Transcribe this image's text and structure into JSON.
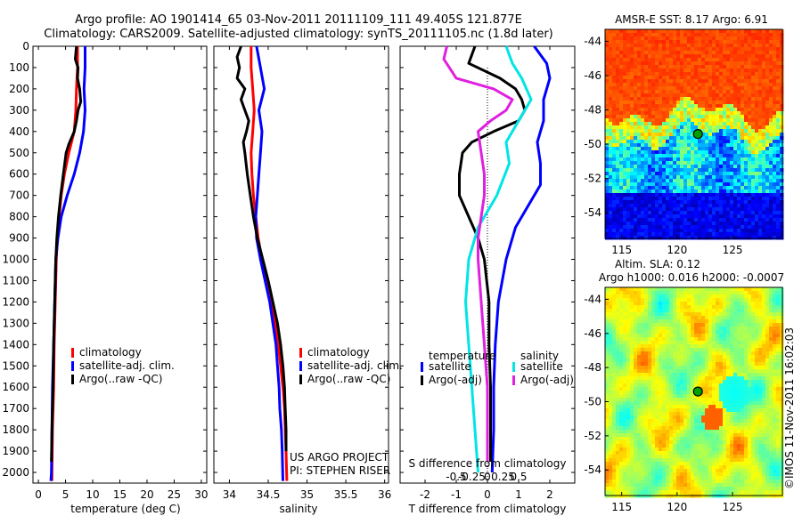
{
  "title_line1": "Argo profile: AO 1901414_65 03-Nov-2011 20111109_111 49.405S 121.877E",
  "title_line2": "Climatology: CARS2009. Satellite-adjusted climatology: synTS_20111105.nc (1.8d later)",
  "colors": {
    "climatology": "#ff0000",
    "satellite": "#0000ff",
    "argo": "#000000",
    "sat_salinity": "#00e5e5",
    "argo_salinity": "#e020e0"
  },
  "chart_data": [
    {
      "type": "line",
      "id": "temperature",
      "xlabel": "temperature (deg C)",
      "xlim": [
        -1,
        31
      ],
      "ylim": [
        2050,
        0
      ],
      "xticks": [
        0,
        5,
        10,
        15,
        20,
        25,
        30
      ],
      "xtick_labels": [
        "0",
        "5",
        "10",
        "15",
        "20",
        "25",
        "30"
      ],
      "yticks": [
        0,
        100,
        200,
        300,
        400,
        500,
        600,
        700,
        800,
        900,
        1000,
        1100,
        1200,
        1300,
        1400,
        1500,
        1600,
        1700,
        1800,
        1900,
        2000
      ],
      "ytick_labels": [
        "0",
        "100",
        "200",
        "300",
        "400",
        "500",
        "600",
        "700",
        "800",
        "900",
        "1000",
        "1100",
        "1200",
        "1300",
        "1400",
        "1500",
        "1600",
        "1700",
        "1800",
        "1900",
        "2000"
      ],
      "legend": [
        "climatology",
        "satellite-adj. clim.",
        "Argo(..raw -QC)"
      ],
      "series": [
        {
          "color_key": "climatology",
          "points": [
            [
              7.2,
              0
            ],
            [
              7.2,
              100
            ],
            [
              7.0,
              200
            ],
            [
              6.9,
              300
            ],
            [
              6.6,
              400
            ],
            [
              5.6,
              500
            ],
            [
              4.8,
              600
            ],
            [
              4.2,
              700
            ],
            [
              3.8,
              800
            ],
            [
              3.5,
              900
            ],
            [
              3.3,
              1000
            ],
            [
              3.1,
              1200
            ],
            [
              2.9,
              1400
            ],
            [
              2.8,
              1600
            ],
            [
              2.6,
              1800
            ],
            [
              2.5,
              2000
            ],
            [
              2.5,
              2040
            ]
          ]
        },
        {
          "color_key": "satellite",
          "points": [
            [
              8.6,
              0
            ],
            [
              8.6,
              100
            ],
            [
              8.4,
              200
            ],
            [
              8.6,
              300
            ],
            [
              8.3,
              400
            ],
            [
              7.6,
              500
            ],
            [
              6.6,
              600
            ],
            [
              5.3,
              700
            ],
            [
              4.2,
              800
            ],
            [
              3.6,
              900
            ],
            [
              3.2,
              1000
            ],
            [
              3.0,
              1200
            ],
            [
              2.8,
              1400
            ],
            [
              2.6,
              1600
            ],
            [
              2.5,
              1800
            ],
            [
              2.4,
              2000
            ],
            [
              2.3,
              2040
            ]
          ]
        },
        {
          "color_key": "argo",
          "points": [
            [
              7.0,
              0
            ],
            [
              6.8,
              60
            ],
            [
              7.3,
              100
            ],
            [
              7.2,
              150
            ],
            [
              7.6,
              200
            ],
            [
              7.8,
              260
            ],
            [
              7.3,
              300
            ],
            [
              7.0,
              350
            ],
            [
              6.6,
              400
            ],
            [
              5.6,
              460
            ],
            [
              5.1,
              500
            ],
            [
              4.6,
              600
            ],
            [
              4.1,
              700
            ],
            [
              3.7,
              800
            ],
            [
              3.4,
              900
            ],
            [
              3.2,
              1000
            ],
            [
              3.0,
              1200
            ],
            [
              2.8,
              1400
            ],
            [
              2.7,
              1600
            ],
            [
              2.5,
              1800
            ],
            [
              2.4,
              1950
            ]
          ]
        }
      ]
    },
    {
      "type": "line",
      "id": "salinity",
      "xlabel": "salinity",
      "xlim": [
        33.8,
        36.05
      ],
      "ylim": [
        2050,
        0
      ],
      "xticks": [
        34,
        34.5,
        35,
        35.5,
        36
      ],
      "xtick_labels": [
        "34",
        "34.5",
        "35",
        "35.5",
        "36"
      ],
      "legend": [
        "climatology",
        "satellite-adj. clim.",
        "Argo(..raw -QC)"
      ],
      "annotation": [
        "US ARGO PROJECT",
        "PI: STEPHEN RISER"
      ],
      "series": [
        {
          "color_key": "climatology",
          "points": [
            [
              34.28,
              0
            ],
            [
              34.28,
              100
            ],
            [
              34.3,
              200
            ],
            [
              34.32,
              300
            ],
            [
              34.3,
              400
            ],
            [
              34.28,
              500
            ],
            [
              34.29,
              600
            ],
            [
              34.31,
              700
            ],
            [
              34.34,
              800
            ],
            [
              34.37,
              900
            ],
            [
              34.42,
              1000
            ],
            [
              34.48,
              1100
            ],
            [
              34.54,
              1200
            ],
            [
              34.59,
              1300
            ],
            [
              34.63,
              1400
            ],
            [
              34.66,
              1500
            ],
            [
              34.69,
              1600
            ],
            [
              34.71,
              1700
            ],
            [
              34.72,
              1800
            ],
            [
              34.73,
              1900
            ],
            [
              34.74,
              2040
            ]
          ]
        },
        {
          "color_key": "satellite",
          "points": [
            [
              34.35,
              0
            ],
            [
              34.4,
              100
            ],
            [
              34.45,
              200
            ],
            [
              34.38,
              300
            ],
            [
              34.42,
              400
            ],
            [
              34.4,
              500
            ],
            [
              34.38,
              600
            ],
            [
              34.36,
              700
            ],
            [
              34.34,
              800
            ],
            [
              34.35,
              900
            ],
            [
              34.4,
              1000
            ],
            [
              34.46,
              1100
            ],
            [
              34.52,
              1200
            ],
            [
              34.56,
              1300
            ],
            [
              34.6,
              1400
            ],
            [
              34.62,
              1500
            ],
            [
              34.64,
              1600
            ],
            [
              34.65,
              1700
            ],
            [
              34.67,
              1800
            ],
            [
              34.68,
              1900
            ],
            [
              34.69,
              2040
            ]
          ]
        },
        {
          "color_key": "argo",
          "points": [
            [
              34.15,
              0
            ],
            [
              34.1,
              50
            ],
            [
              34.13,
              100
            ],
            [
              34.1,
              150
            ],
            [
              34.2,
              200
            ],
            [
              34.15,
              250
            ],
            [
              34.2,
              300
            ],
            [
              34.25,
              350
            ],
            [
              34.22,
              400
            ],
            [
              34.18,
              450
            ],
            [
              34.2,
              500
            ],
            [
              34.23,
              600
            ],
            [
              34.27,
              700
            ],
            [
              34.31,
              800
            ],
            [
              34.36,
              900
            ],
            [
              34.43,
              1000
            ],
            [
              34.5,
              1100
            ],
            [
              34.56,
              1200
            ],
            [
              34.62,
              1300
            ],
            [
              34.66,
              1400
            ],
            [
              34.69,
              1500
            ],
            [
              34.71,
              1600
            ],
            [
              34.72,
              1700
            ],
            [
              34.73,
              1800
            ],
            [
              34.73,
              1900
            ]
          ]
        }
      ]
    },
    {
      "type": "line",
      "id": "difference",
      "xlabel": "T difference from climatology",
      "xlabel_top": "S difference from climatology",
      "xlim": [
        -2.8,
        2.8
      ],
      "ylim": [
        2050,
        0
      ],
      "xticks": [
        -2,
        -1,
        0,
        1,
        2
      ],
      "xtick_labels": [
        "-2",
        "-1",
        "0",
        "1",
        "2"
      ],
      "top_ticks": [
        -0.5,
        -0.25,
        0,
        0.25,
        0.5
      ],
      "top_tick_labels": [
        "-0.5",
        "-0.25",
        "0",
        "0.25",
        "0.5"
      ],
      "legend_temperature": {
        "title": "temperature",
        "items": [
          "satellite",
          "Argo(-adj)"
        ]
      },
      "legend_salinity": {
        "title": "salinity",
        "items": [
          "satellite",
          "Argo(-adj)"
        ]
      },
      "series": [
        {
          "color_key": "satellite",
          "points": [
            [
              1.5,
              0
            ],
            [
              1.9,
              80
            ],
            [
              2.0,
              150
            ],
            [
              1.8,
              250
            ],
            [
              1.8,
              350
            ],
            [
              1.6,
              450
            ],
            [
              1.7,
              550
            ],
            [
              1.7,
              650
            ],
            [
              1.3,
              750
            ],
            [
              0.9,
              850
            ],
            [
              0.6,
              1000
            ],
            [
              0.35,
              1200
            ],
            [
              0.25,
              1400
            ],
            [
              0.2,
              1600
            ],
            [
              0.2,
              1800
            ],
            [
              0.15,
              2000
            ]
          ]
        },
        {
          "color_key": "argo",
          "points": [
            [
              -0.4,
              0
            ],
            [
              -0.6,
              80
            ],
            [
              0.4,
              150
            ],
            [
              0.9,
              200
            ],
            [
              1.1,
              250
            ],
            [
              1.2,
              300
            ],
            [
              1.0,
              350
            ],
            [
              0.2,
              400
            ],
            [
              -0.5,
              450
            ],
            [
              -0.8,
              500
            ],
            [
              -0.9,
              600
            ],
            [
              -0.9,
              700
            ],
            [
              -0.6,
              800
            ],
            [
              -0.3,
              900
            ],
            [
              -0.1,
              1000
            ],
            [
              0.05,
              1200
            ],
            [
              0.05,
              1400
            ],
            [
              0.1,
              1600
            ],
            [
              0.1,
              1800
            ],
            [
              0.1,
              1950
            ]
          ]
        },
        {
          "color_key": "sat_salinity",
          "points": [
            [
              0.6,
              0
            ],
            [
              0.8,
              80
            ],
            [
              1.1,
              150
            ],
            [
              1.4,
              250
            ],
            [
              1.0,
              350
            ],
            [
              0.6,
              450
            ],
            [
              0.7,
              550
            ],
            [
              0.3,
              700
            ],
            [
              -0.3,
              850
            ],
            [
              -0.6,
              1000
            ],
            [
              -0.7,
              1200
            ],
            [
              -0.6,
              1400
            ],
            [
              -0.5,
              1600
            ],
            [
              -0.4,
              1800
            ],
            [
              -0.3,
              2000
            ]
          ]
        },
        {
          "color_key": "argo_salinity",
          "points": [
            [
              -1.3,
              0
            ],
            [
              -1.4,
              60
            ],
            [
              -1.0,
              150
            ],
            [
              0.2,
              200
            ],
            [
              0.8,
              250
            ],
            [
              0.6,
              300
            ],
            [
              0.1,
              350
            ],
            [
              -0.3,
              400
            ],
            [
              -0.2,
              500
            ],
            [
              -0.1,
              600
            ],
            [
              -0.1,
              700
            ],
            [
              -0.2,
              800
            ],
            [
              -0.3,
              900
            ],
            [
              -0.3,
              1000
            ],
            [
              -0.2,
              1200
            ],
            [
              -0.1,
              1400
            ],
            [
              0.0,
              1600
            ],
            [
              0.0,
              1800
            ],
            [
              0.0,
              1950
            ]
          ]
        }
      ]
    },
    {
      "type": "heatmap",
      "id": "sst",
      "title": "AMSR-E SST: 8.17 Argo: 6.91",
      "xlim": [
        113.5,
        129.5
      ],
      "ylim": [
        -55.5,
        -43.3
      ],
      "xticks": [
        115,
        120,
        125
      ],
      "xtick_labels": [
        "115",
        "120",
        "125"
      ],
      "yticks": [
        -44,
        -46,
        -48,
        -50,
        -52,
        -54
      ],
      "ytick_labels": [
        "-44",
        "-46",
        "-48",
        "-50",
        "-52",
        "-54"
      ],
      "marker": [
        121.877,
        -49.405
      ]
    },
    {
      "type": "heatmap",
      "id": "sla",
      "title_line1": "Altim. SLA: 0.12",
      "title_line2": "Argo h1000: 0.016 h2000: -0.0007",
      "xlim": [
        113.5,
        129.5
      ],
      "ylim": [
        -55.5,
        -43.3
      ],
      "xticks": [
        115,
        120,
        125
      ],
      "xtick_labels": [
        "115",
        "120",
        "125"
      ],
      "yticks": [
        -44,
        -46,
        -48,
        -50,
        -52,
        -54
      ],
      "ytick_labels": [
        "-44",
        "-46",
        "-48",
        "-50",
        "-52",
        "-54"
      ],
      "marker": [
        121.877,
        -49.405
      ]
    }
  ],
  "footer_stamp": "©IMOS 11-Nov-2011 16:02:03"
}
